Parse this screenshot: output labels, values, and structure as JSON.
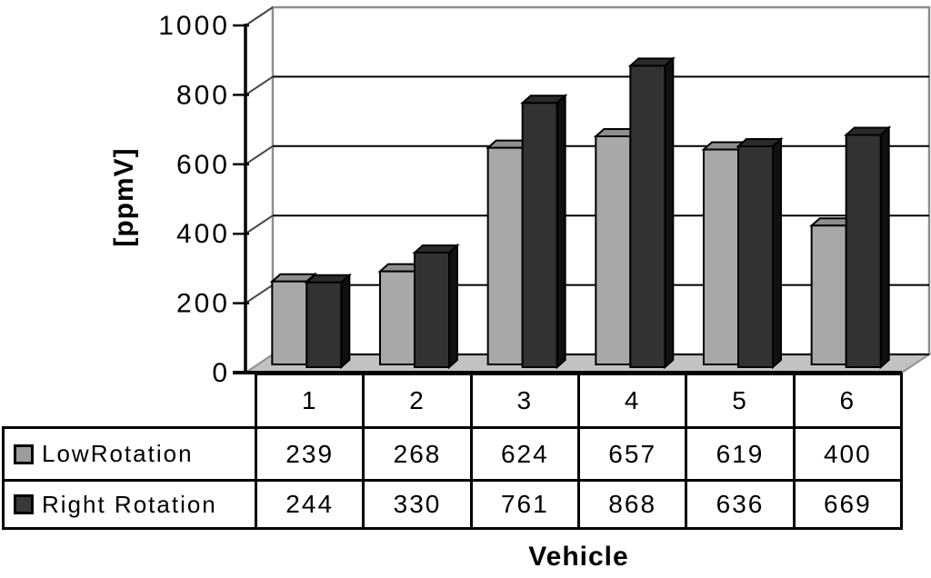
{
  "chart_data": {
    "type": "bar",
    "style": "3d-clustered-column",
    "title": "",
    "xlabel": "Vehicle",
    "ylabel": "[ppmV]",
    "ylim": [
      0,
      1000
    ],
    "yticks": [
      0,
      200,
      400,
      600,
      800,
      1000
    ],
    "grid": "horizontal-on-back-wall",
    "legend_position": "data-table-left",
    "categories": [
      "1",
      "2",
      "3",
      "4",
      "5",
      "6"
    ],
    "series": [
      {
        "name": "LowRotation",
        "values": [
          239,
          268,
          624,
          657,
          619,
          400
        ],
        "color": "#A8A8A8",
        "color_top": "#8E8E8E",
        "color_side": "#7C7C7C",
        "swatch": "#9C9C9C"
      },
      {
        "name": "Right Rotation",
        "values": [
          244,
          330,
          761,
          868,
          636,
          669
        ],
        "color": "#323232",
        "color_top": "#2A2A2A",
        "color_side": "#101010",
        "swatch": "#383838"
      }
    ],
    "colors": {
      "floor": "#C2C2C2",
      "wall_fill": "#FFFFFF",
      "wall_edge": "#8F8F8F",
      "gridline": "#000000",
      "axis": "#000000",
      "connector": "#444444"
    }
  }
}
